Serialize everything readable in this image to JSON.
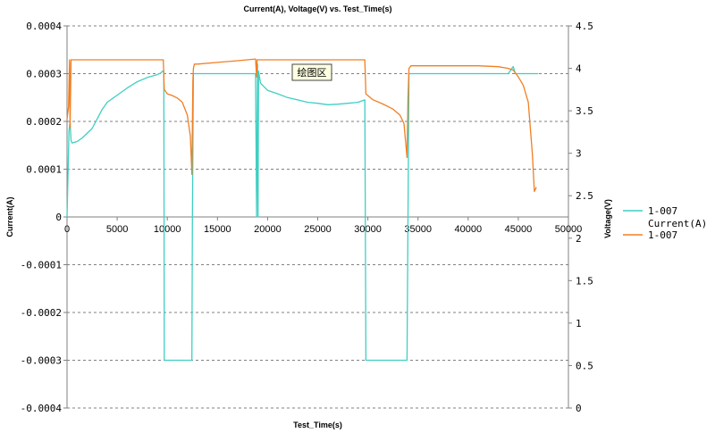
{
  "chart_data": {
    "type": "line",
    "title": "Current(A), Voltage(V) vs. Test_Time(s)",
    "xlabel": "Test_Time(s)",
    "ylabel_left": "Current(A)",
    "ylabel_right": "Voltage(V)",
    "xlim": [
      0,
      50000
    ],
    "ylim_left": [
      -0.0004,
      0.0004
    ],
    "ylim_right": [
      0,
      4.5
    ],
    "x_ticks": [
      "0",
      "5000",
      "10000",
      "15000",
      "20000",
      "25000",
      "30000",
      "35000",
      "40000",
      "45000",
      "50000"
    ],
    "y_left_ticks": [
      "0.0004",
      "0.0003",
      "0.0002",
      "0.0001",
      "0",
      "-0.0001",
      "-0.0002",
      "-0.0003",
      "-0.0004"
    ],
    "y_right_ticks": [
      "4.5",
      "4",
      "3.5",
      "3",
      "2.5",
      "2",
      "1.5",
      "1",
      "0.5",
      "0"
    ],
    "grid": true,
    "legend_position": "right",
    "tooltip": "绘图区",
    "series": [
      {
        "name": "1-007 Current(A)",
        "axis": "left",
        "color": "#3fcfc2",
        "x": [
          0,
          200,
          300,
          400,
          500,
          1000,
          1500,
          2000,
          2500,
          3000,
          3500,
          4000,
          5000,
          6000,
          7000,
          8000,
          9000,
          9400,
          9500,
          9650,
          9700,
          9800,
          12400,
          12450,
          12500,
          12600,
          12700,
          15000,
          17500,
          18800,
          18900,
          19000,
          19050,
          19100,
          19300,
          20000,
          21000,
          22000,
          23000,
          24000,
          25000,
          26000,
          27000,
          28000,
          29000,
          29700,
          29800,
          30000,
          33800,
          33900,
          34000,
          34100,
          34200,
          35000,
          38000,
          41000,
          44000,
          44500,
          44700,
          45000,
          46000,
          47000
        ],
        "y": [
          0,
          0.00018,
          0.0002,
          0.00016,
          0.000155,
          0.000158,
          0.000165,
          0.000175,
          0.000185,
          0.000205,
          0.000225,
          0.00024,
          0.000255,
          0.00027,
          0.000283,
          0.000292,
          0.000298,
          0.000302,
          0.000305,
          0.000305,
          -0.0003,
          -0.0003,
          -0.0003,
          -0.0003,
          0.0,
          0.0003,
          0.0003,
          0.0003,
          0.0003,
          0.0003,
          0.0,
          0.00032,
          0.0,
          0.000305,
          0.00028,
          0.000265,
          0.000258,
          0.00025,
          0.000245,
          0.00024,
          0.000238,
          0.000235,
          0.000236,
          0.000238,
          0.00024,
          0.000245,
          -0.0003,
          -0.0003,
          -0.0003,
          -0.0003,
          0.0,
          0.0003,
          0.0003,
          0.0003,
          0.0003,
          0.0003,
          0.0003,
          0.000315,
          0.0003,
          0.0003,
          0.0003,
          0.0003
        ]
      },
      {
        "name": "1-007",
        "axis": "right",
        "color": "#f07f24",
        "x": [
          0,
          150,
          250,
          300,
          400,
          9600,
          9700,
          10000,
          10500,
          11000,
          11500,
          12000,
          12300,
          12450,
          12550,
          12600,
          12700,
          13000,
          15000,
          17000,
          18800,
          18900,
          18950,
          19000,
          19100,
          29700,
          29800,
          30500,
          31500,
          32500,
          33200,
          33600,
          33900,
          34000,
          34100,
          34300,
          35000,
          38000,
          41000,
          43000,
          44000,
          44500,
          45000,
          45500,
          46000,
          46400,
          46600,
          46800
        ],
        "y": [
          3.4,
          3.55,
          4.1,
          3.3,
          4.1,
          4.1,
          3.75,
          3.7,
          3.68,
          3.65,
          3.6,
          3.45,
          3.2,
          2.75,
          3.85,
          4.0,
          4.05,
          4.05,
          4.07,
          4.09,
          4.11,
          3.9,
          4.1,
          4.1,
          4.1,
          4.1,
          3.7,
          3.63,
          3.58,
          3.52,
          3.45,
          3.35,
          2.95,
          3.65,
          4.0,
          4.03,
          4.03,
          4.03,
          4.03,
          4.02,
          4.0,
          3.98,
          3.9,
          3.8,
          3.6,
          3.0,
          2.55,
          2.6
        ]
      }
    ]
  }
}
